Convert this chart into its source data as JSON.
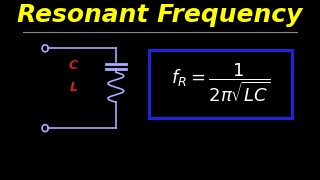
{
  "background_color": "#000000",
  "title": "Resonant Frequency",
  "title_color": "#ffff00",
  "title_fontsize": 18,
  "separator_color": "#888888",
  "formula_box_color": "#2222dd",
  "formula_text": "$f_R = \\dfrac{1}{2\\pi\\sqrt{LC}}$",
  "formula_color": "#ffffff",
  "formula_fontsize": 13,
  "circuit_color": "#ffffff",
  "label_C_color": "#cc2222",
  "label_L_color": "#cc2222",
  "circuit_wire_color": "#aaaaff"
}
